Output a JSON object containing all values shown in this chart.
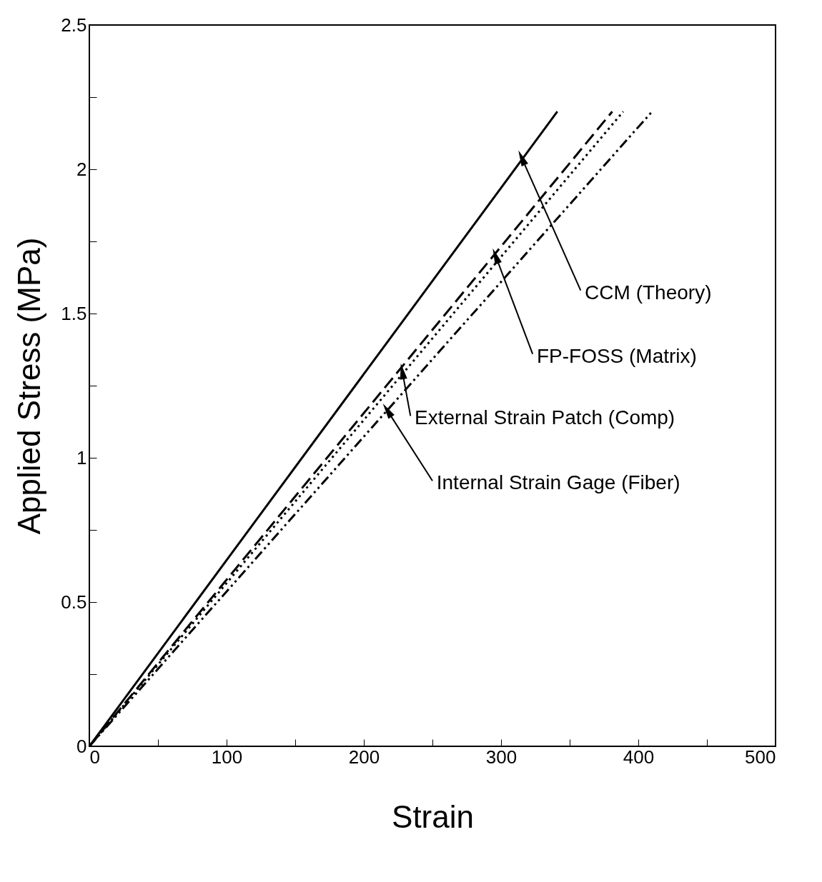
{
  "chart_data": {
    "type": "line",
    "xlabel": "Strain",
    "ylabel": "Applied Stress (MPa)",
    "xlim": [
      0,
      500
    ],
    "ylim": [
      0,
      2.5
    ],
    "xticks": [
      0,
      {
        "value": 50,
        "label": null
      },
      100,
      {
        "value": 150,
        "label": null
      },
      200,
      {
        "value": 250,
        "label": null
      },
      300,
      {
        "value": 350,
        "label": null
      },
      400,
      {
        "value": 450,
        "label": null
      },
      500
    ],
    "yticks": [
      0,
      {
        "value": 0.25,
        "label": null
      },
      0.5,
      {
        "value": 0.75,
        "label": null
      },
      1,
      {
        "value": 1.25,
        "label": null
      },
      1.5,
      {
        "value": 1.75,
        "label": null
      },
      2,
      {
        "value": 2.25,
        "label": null
      },
      2.5
    ],
    "grid": false,
    "marker": "none",
    "series": [
      {
        "color": "#000000",
        "line_style": "solid",
        "x": [
          0,
          341
        ],
        "values": [
          0,
          2.2
        ]
      },
      {
        "color": "#000000",
        "line_style": "dashed",
        "x": [
          0,
          381
        ],
        "values": [
          0,
          2.2
        ]
      },
      {
        "color": "#000000",
        "line_style": "dotted",
        "x": [
          0,
          389
        ],
        "values": [
          0,
          2.2
        ]
      },
      {
        "color": "#000000",
        "line_style": "dashdotdot",
        "x": [
          0,
          410
        ],
        "values": [
          0,
          2.2
        ]
      }
    ],
    "annotations": [
      {
        "text": "CCM (Theory)",
        "x": 315,
        "y": 2.04
      },
      {
        "text": "FP-FOSS (Matrix)",
        "x": 296,
        "y": 1.7
      },
      {
        "text": "External Strain Patch (Comp)",
        "x": 228,
        "y": 1.3
      },
      {
        "text": "Internal Strain Gage (Fiber)",
        "x": 217,
        "y": 1.165
      }
    ]
  }
}
